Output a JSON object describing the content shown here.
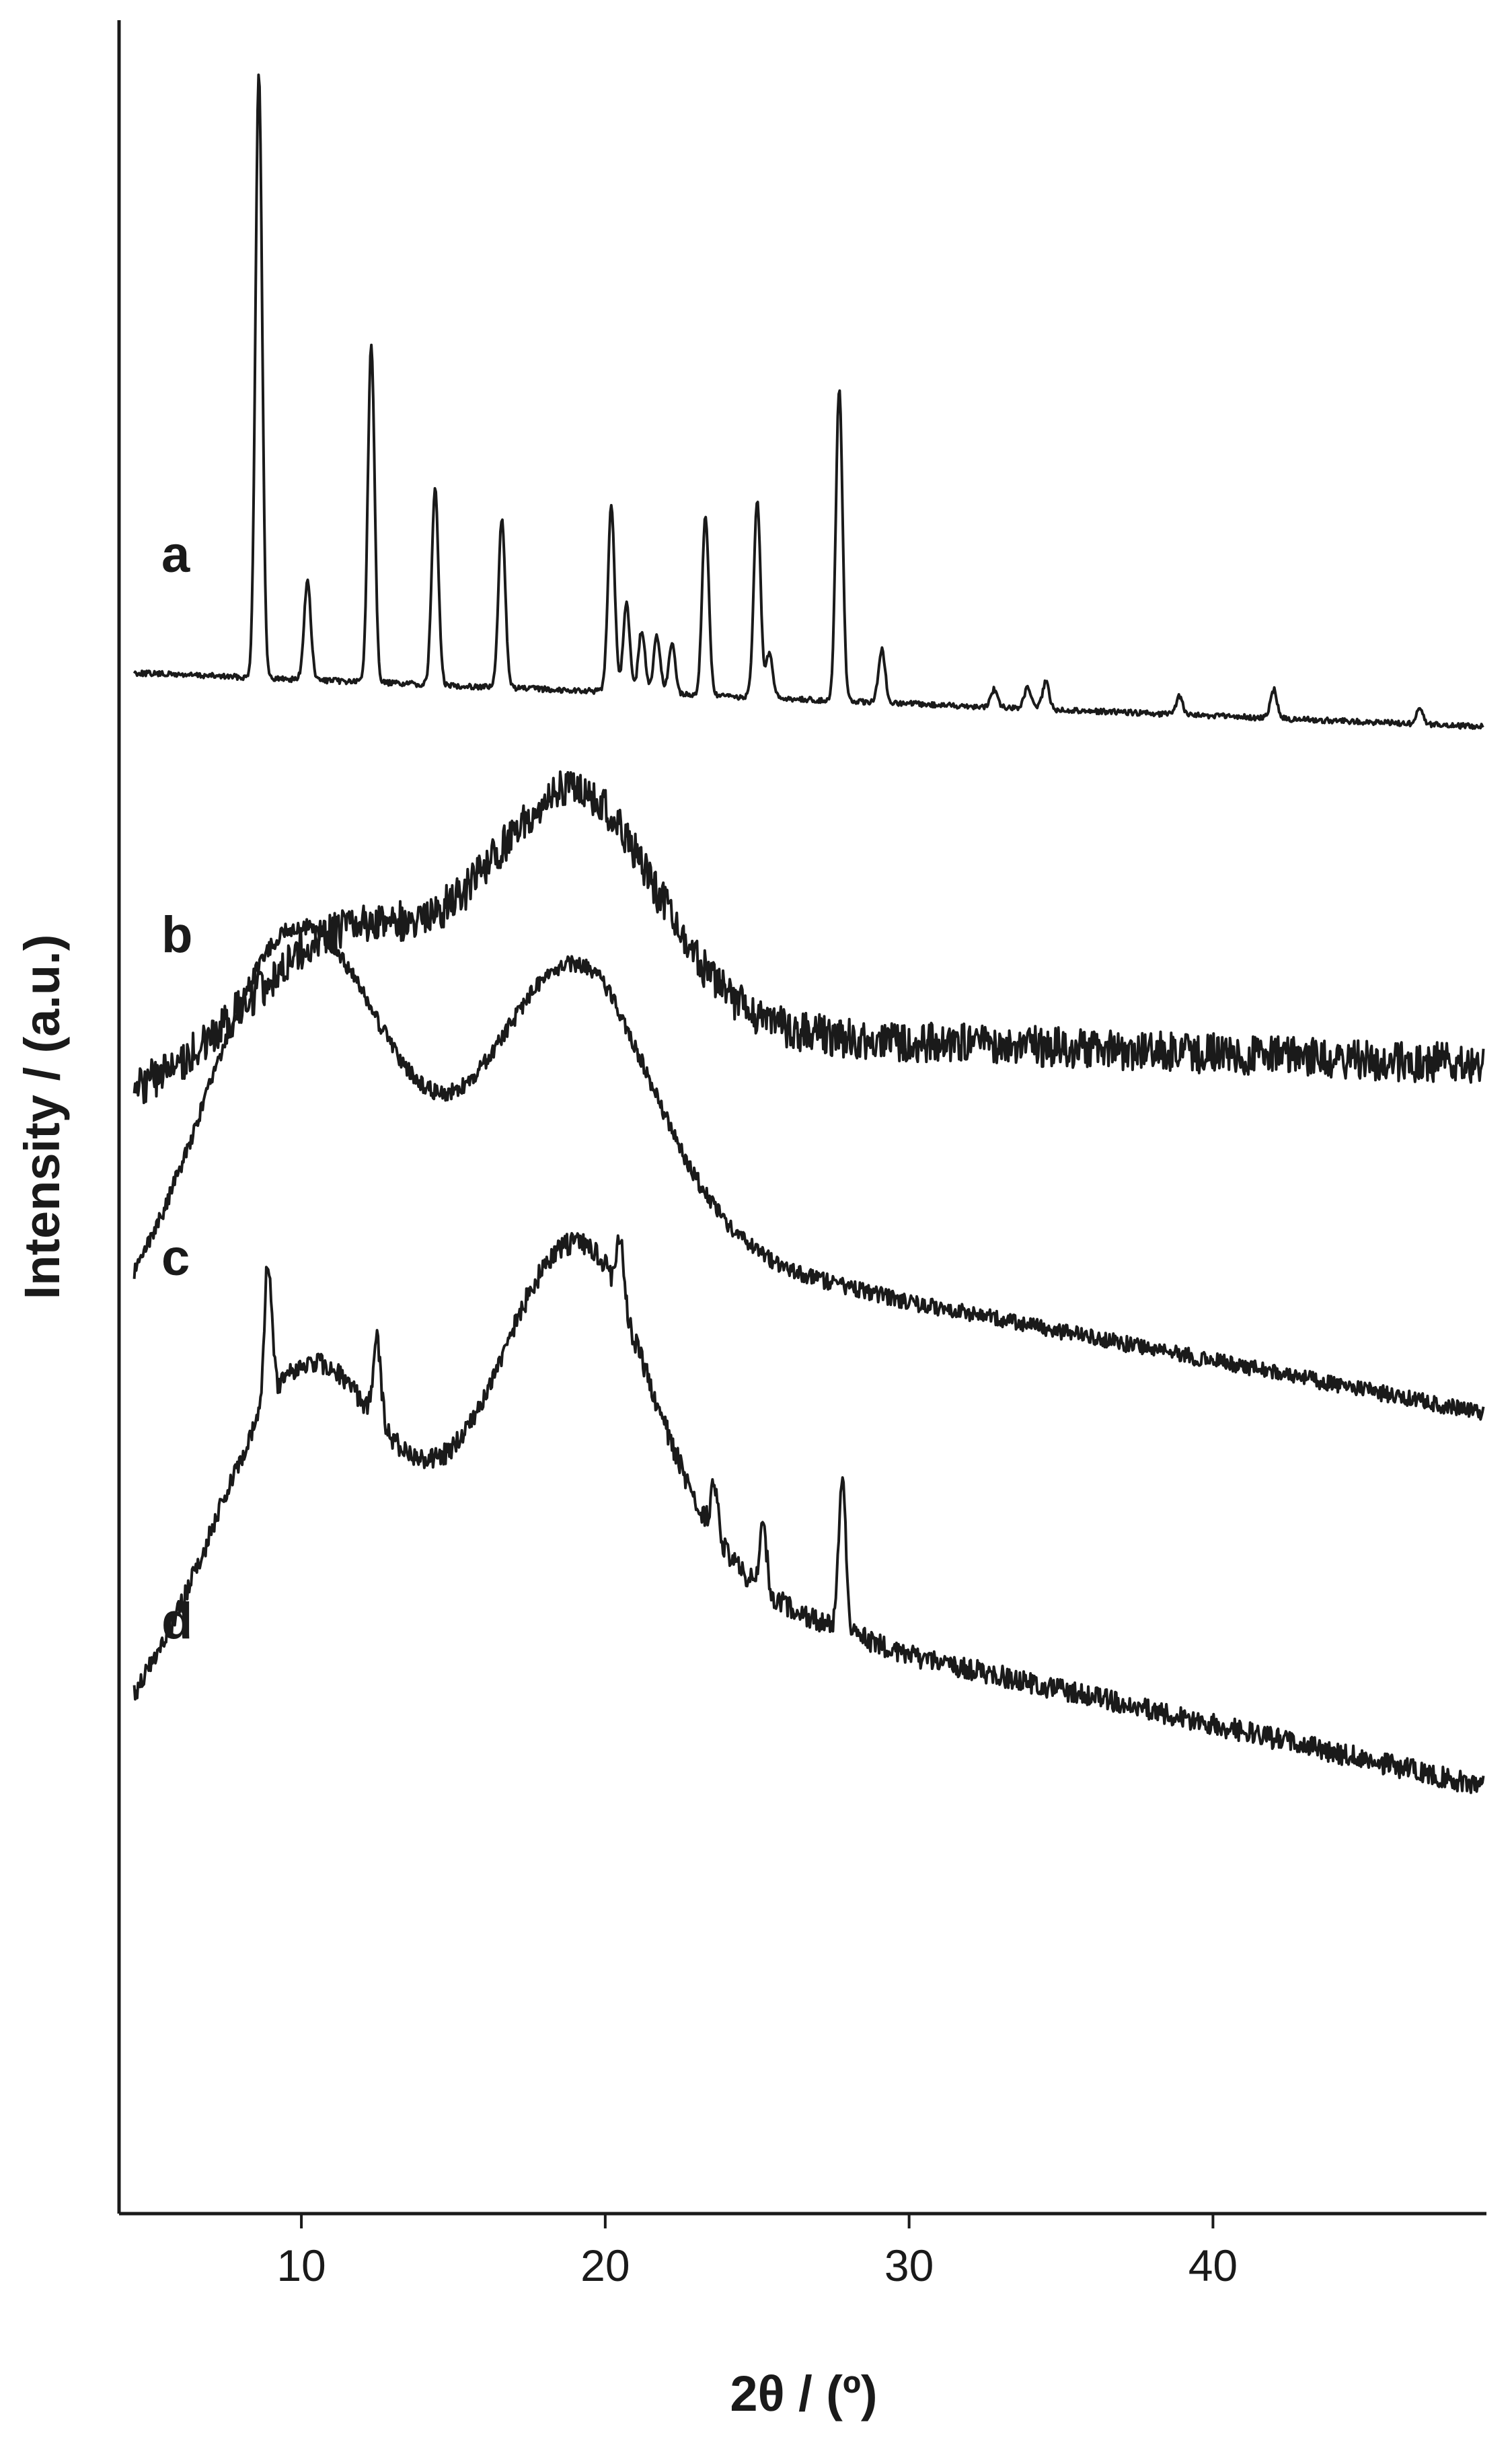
{
  "chart_data": {
    "type": "line",
    "xlabel": "2θ / (º)",
    "ylabel": "Intensity / (a.u.)",
    "xlim": [
      4,
      49
    ],
    "x_ticks": [
      10,
      20,
      30,
      40
    ],
    "x_tick_labels": [
      "10",
      "20",
      "30",
      "40"
    ],
    "grid": false,
    "legend": "none",
    "series": [
      {
        "name": "a",
        "peaks": [
          [
            8.6,
            340
          ],
          [
            10.2,
            55
          ],
          [
            12.3,
            190
          ],
          [
            14.4,
            110
          ],
          [
            16.6,
            95
          ],
          [
            20.2,
            105
          ],
          [
            20.7,
            50
          ],
          [
            21.2,
            35
          ],
          [
            21.7,
            32
          ],
          [
            22.2,
            28
          ],
          [
            23.3,
            100
          ],
          [
            25.0,
            110
          ],
          [
            25.4,
            25
          ],
          [
            27.7,
            175
          ],
          [
            29.1,
            30
          ],
          [
            32.8,
            10
          ],
          [
            33.9,
            12
          ],
          [
            34.5,
            15
          ],
          [
            38.9,
            10
          ],
          [
            42.0,
            16
          ],
          [
            46.8,
            10
          ]
        ]
      },
      {
        "name": "b",
        "humps": [
          [
            11.5,
            75,
            3.3
          ],
          [
            19.0,
            130,
            2.7
          ]
        ],
        "baseline": [
          [
            4.5,
            0
          ],
          [
            25,
            35
          ],
          [
            48.9,
            20
          ]
        ]
      },
      {
        "name": "c",
        "humps": [
          [
            9.8,
            190,
            3.0
          ],
          [
            18.8,
            135,
            2.6
          ]
        ],
        "baseline": [
          [
            4.5,
            35
          ],
          [
            20,
            95
          ],
          [
            30,
            60
          ],
          [
            48.9,
            5
          ]
        ]
      },
      {
        "name": "d",
        "humps": [
          [
            10.0,
            150,
            2.8
          ],
          [
            18.8,
            155,
            2.5
          ]
        ],
        "peaks": [
          [
            8.9,
            70
          ],
          [
            12.5,
            40
          ],
          [
            20.5,
            30
          ],
          [
            23.6,
            25
          ],
          [
            25.2,
            30
          ],
          [
            27.8,
            75
          ]
        ],
        "baseline": [
          [
            4.5,
            35
          ],
          [
            20,
            130
          ],
          [
            30,
            75
          ],
          [
            48.9,
            10
          ]
        ]
      }
    ]
  }
}
